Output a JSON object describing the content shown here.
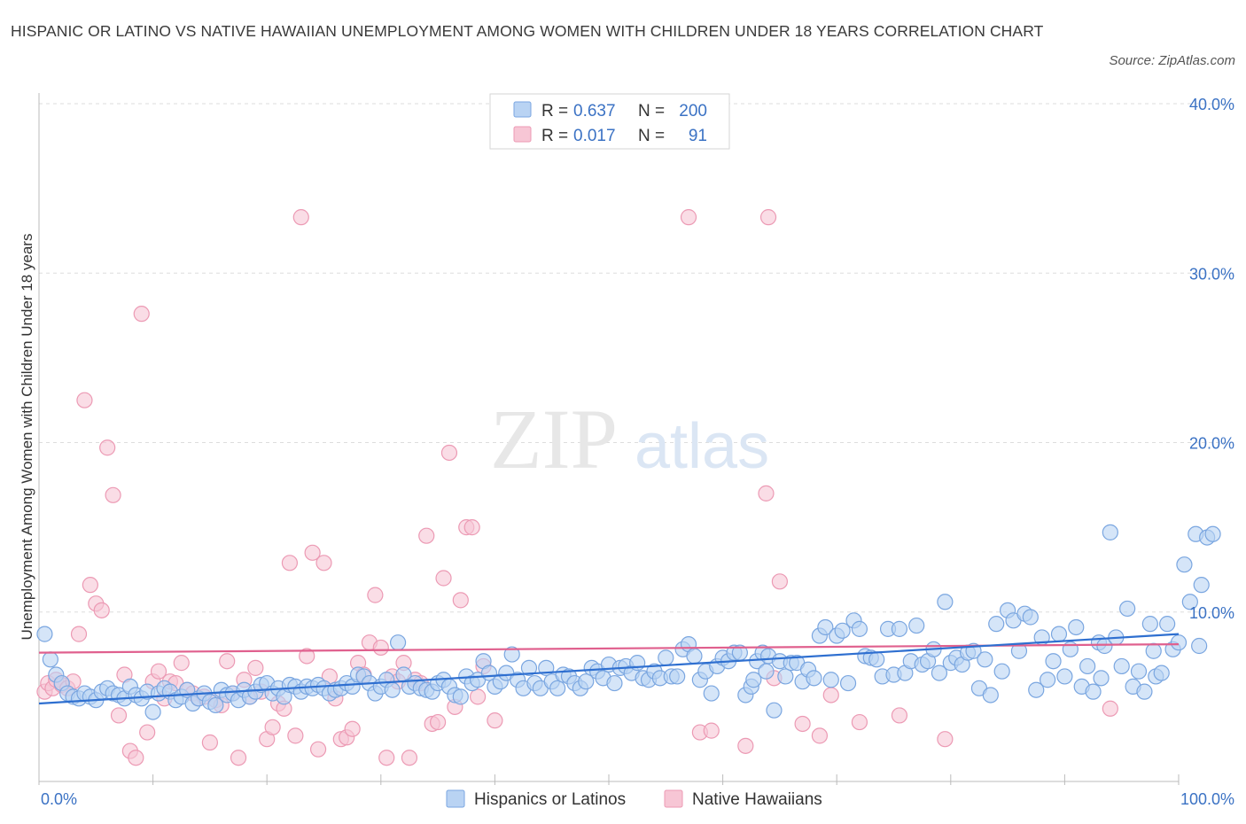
{
  "title": "HISPANIC OR LATINO VS NATIVE HAWAIIAN UNEMPLOYMENT AMONG WOMEN WITH CHILDREN UNDER 18 YEARS CORRELATION CHART",
  "source": "Source: ZipAtlas.com",
  "legend_stats": [
    {
      "r_label": "R =",
      "r_value": "0.637",
      "n_label": "N =",
      "n_value": "200"
    },
    {
      "r_label": "R =",
      "r_value": "0.017",
      "n_label": "N =",
      "n_value": "91"
    }
  ],
  "watermark": {
    "zip": "ZIP",
    "atlas": "atlas"
  },
  "colors": {
    "blue_fill": "#b9d3f3",
    "blue_stroke": "#7aa6e0",
    "blue_line": "#2e6fd0",
    "pink_fill": "#f7c6d5",
    "pink_stroke": "#ec9ab4",
    "pink_line": "#e0608e",
    "tick_text": "#3b72c4",
    "grid": "#dddddd"
  },
  "chart_data": {
    "type": "scatter",
    "title": "HISPANIC OR LATINO VS NATIVE HAWAIIAN UNEMPLOYMENT AMONG WOMEN WITH CHILDREN UNDER 18 YEARS CORRELATION CHART",
    "xlabel": "",
    "ylabel": "Unemployment Among Women with Children Under 18 years",
    "xlim": [
      0,
      100
    ],
    "ylim": [
      0,
      40
    ],
    "x_tick_labels": [
      "0.0%",
      "100.0%"
    ],
    "y_tick_labels": [
      "10.0%",
      "20.0%",
      "30.0%",
      "40.0%"
    ],
    "y_ticks": [
      10,
      20,
      30,
      40
    ],
    "grid": true,
    "legend_position": "top-center",
    "series": [
      {
        "name": "Hispanics or Latinos",
        "r": 0.637,
        "n": 200,
        "trend": [
          [
            0,
            4.6
          ],
          [
            100,
            8.7
          ]
        ],
        "points": [
          [
            0.5,
            8.7
          ],
          [
            1,
            7.2
          ],
          [
            1.5,
            6.3
          ],
          [
            2,
            5.8
          ],
          [
            2.5,
            5.2
          ],
          [
            3,
            5.0
          ],
          [
            3.5,
            4.9
          ],
          [
            4,
            5.2
          ],
          [
            4.5,
            5.0
          ],
          [
            5,
            4.8
          ],
          [
            5.5,
            5.3
          ],
          [
            6,
            5.5
          ],
          [
            6.5,
            5.2
          ],
          [
            7,
            5.1
          ],
          [
            7.5,
            4.9
          ],
          [
            8,
            5.6
          ],
          [
            8.5,
            5.1
          ],
          [
            9,
            4.9
          ],
          [
            9.5,
            5.3
          ],
          [
            10,
            4.1
          ],
          [
            10.5,
            5.2
          ],
          [
            11,
            5.5
          ],
          [
            11.5,
            5.3
          ],
          [
            12,
            4.8
          ],
          [
            12.5,
            5.0
          ],
          [
            13,
            5.4
          ],
          [
            13.5,
            4.6
          ],
          [
            14,
            4.9
          ],
          [
            14.5,
            5.2
          ],
          [
            15,
            4.7
          ],
          [
            15.5,
            4.5
          ],
          [
            16,
            5.4
          ],
          [
            16.5,
            5.1
          ],
          [
            17,
            5.2
          ],
          [
            17.5,
            4.8
          ],
          [
            18,
            5.4
          ],
          [
            18.5,
            5.0
          ],
          [
            19,
            5.3
          ],
          [
            19.5,
            5.7
          ],
          [
            20,
            5.8
          ],
          [
            20.5,
            5.2
          ],
          [
            21,
            5.5
          ],
          [
            21.5,
            5.0
          ],
          [
            22,
            5.7
          ],
          [
            22.5,
            5.6
          ],
          [
            23,
            5.3
          ],
          [
            23.5,
            5.6
          ],
          [
            24,
            5.5
          ],
          [
            24.5,
            5.7
          ],
          [
            25,
            5.5
          ],
          [
            25.5,
            5.2
          ],
          [
            26,
            5.4
          ],
          [
            26.5,
            5.5
          ],
          [
            27,
            5.8
          ],
          [
            27.5,
            5.6
          ],
          [
            28,
            6.3
          ],
          [
            28.5,
            6.2
          ],
          [
            29,
            5.8
          ],
          [
            29.5,
            5.2
          ],
          [
            30,
            5.6
          ],
          [
            30.5,
            6.0
          ],
          [
            31,
            5.4
          ],
          [
            31.5,
            8.2
          ],
          [
            32,
            6.3
          ],
          [
            32.5,
            5.6
          ],
          [
            33,
            5.8
          ],
          [
            33.5,
            5.5
          ],
          [
            34,
            5.4
          ],
          [
            34.5,
            5.3
          ],
          [
            35,
            5.8
          ],
          [
            35.5,
            6.0
          ],
          [
            36,
            5.6
          ],
          [
            36.5,
            5.1
          ],
          [
            37,
            5.0
          ],
          [
            37.5,
            6.2
          ],
          [
            38,
            5.8
          ],
          [
            38.5,
            6.0
          ],
          [
            39,
            7.1
          ],
          [
            39.5,
            6.4
          ],
          [
            40,
            5.6
          ],
          [
            40.5,
            5.9
          ],
          [
            41,
            6.4
          ],
          [
            41.5,
            7.5
          ],
          [
            42,
            6.0
          ],
          [
            42.5,
            5.5
          ],
          [
            43,
            6.7
          ],
          [
            43.5,
            5.8
          ],
          [
            44,
            5.5
          ],
          [
            44.5,
            6.7
          ],
          [
            45,
            5.9
          ],
          [
            45.5,
            5.5
          ],
          [
            46,
            6.3
          ],
          [
            46.5,
            6.2
          ],
          [
            47,
            5.8
          ],
          [
            47.5,
            5.5
          ],
          [
            48,
            5.9
          ],
          [
            48.5,
            6.7
          ],
          [
            49,
            6.5
          ],
          [
            49.5,
            6.1
          ],
          [
            50,
            6.9
          ],
          [
            50.5,
            5.8
          ],
          [
            51,
            6.7
          ],
          [
            51.5,
            6.8
          ],
          [
            52,
            6.4
          ],
          [
            52.5,
            7.0
          ],
          [
            53,
            6.1
          ],
          [
            53.5,
            6.0
          ],
          [
            54,
            6.5
          ],
          [
            54.5,
            6.1
          ],
          [
            55,
            7.3
          ],
          [
            55.5,
            6.2
          ],
          [
            56,
            6.2
          ],
          [
            56.5,
            7.8
          ],
          [
            57,
            8.1
          ],
          [
            57.5,
            7.4
          ],
          [
            58,
            6.0
          ],
          [
            58.5,
            6.5
          ],
          [
            59,
            5.2
          ],
          [
            59.5,
            6.8
          ],
          [
            60,
            7.3
          ],
          [
            60.5,
            7.1
          ],
          [
            61,
            7.6
          ],
          [
            61.5,
            7.6
          ],
          [
            62,
            5.1
          ],
          [
            62.5,
            5.6
          ],
          [
            63,
            7.1
          ],
          [
            63.5,
            7.6
          ],
          [
            64,
            7.4
          ],
          [
            64.5,
            4.2
          ],
          [
            65,
            7.1
          ],
          [
            65.5,
            6.2
          ],
          [
            66,
            7.0
          ],
          [
            66.5,
            7.0
          ],
          [
            67,
            5.9
          ],
          [
            67.5,
            6.6
          ],
          [
            68,
            6.1
          ],
          [
            68.5,
            8.6
          ],
          [
            69,
            9.1
          ],
          [
            69.5,
            6.0
          ],
          [
            70,
            8.6
          ],
          [
            70.5,
            8.9
          ],
          [
            71,
            5.8
          ],
          [
            71.5,
            9.5
          ],
          [
            72,
            9.0
          ],
          [
            72.5,
            7.4
          ],
          [
            73,
            7.3
          ],
          [
            73.5,
            7.2
          ],
          [
            74,
            6.2
          ],
          [
            74.5,
            9.0
          ],
          [
            75,
            6.3
          ],
          [
            75.5,
            9.0
          ],
          [
            76,
            6.4
          ],
          [
            76.5,
            7.1
          ],
          [
            77,
            9.2
          ],
          [
            77.5,
            6.9
          ],
          [
            78,
            7.1
          ],
          [
            78.5,
            7.8
          ],
          [
            79,
            6.4
          ],
          [
            79.5,
            10.6
          ],
          [
            80,
            7.0
          ],
          [
            80.5,
            7.3
          ],
          [
            81,
            6.9
          ],
          [
            81.5,
            7.6
          ],
          [
            82,
            7.7
          ],
          [
            82.5,
            5.5
          ],
          [
            83,
            7.2
          ],
          [
            83.5,
            5.1
          ],
          [
            84,
            9.3
          ],
          [
            84.5,
            6.5
          ],
          [
            85,
            10.1
          ],
          [
            85.5,
            9.5
          ],
          [
            86,
            7.7
          ],
          [
            86.5,
            9.9
          ],
          [
            87,
            9.7
          ],
          [
            87.5,
            5.4
          ],
          [
            88,
            8.5
          ],
          [
            88.5,
            6.0
          ],
          [
            89,
            7.1
          ],
          [
            89.5,
            8.7
          ],
          [
            90,
            6.2
          ],
          [
            90.5,
            7.8
          ],
          [
            91,
            9.1
          ],
          [
            91.5,
            5.6
          ],
          [
            92,
            6.8
          ],
          [
            92.5,
            5.3
          ],
          [
            93,
            8.2
          ],
          [
            93.5,
            8.0
          ],
          [
            94,
            14.7
          ],
          [
            94.5,
            8.5
          ],
          [
            95,
            6.8
          ],
          [
            95.5,
            10.2
          ],
          [
            96,
            5.6
          ],
          [
            96.5,
            6.5
          ],
          [
            97,
            5.3
          ],
          [
            97.5,
            9.3
          ],
          [
            98,
            6.2
          ],
          [
            98.5,
            6.4
          ],
          [
            99,
            9.3
          ],
          [
            99.5,
            7.8
          ],
          [
            100,
            8.2
          ],
          [
            100.5,
            12.8
          ],
          [
            101,
            10.6
          ],
          [
            101.5,
            14.6
          ],
          [
            102,
            11.6
          ],
          [
            102.5,
            14.4
          ],
          [
            103,
            14.6
          ],
          [
            101.8,
            8.0
          ],
          [
            97.8,
            7.7
          ],
          [
            93.2,
            6.1
          ],
          [
            63.8,
            6.5
          ],
          [
            62.7,
            6.0
          ]
        ]
      },
      {
        "name": "Native Hawaiians",
        "r": 0.017,
        "n": 91,
        "trend": [
          [
            0,
            7.6
          ],
          [
            100,
            8.1
          ]
        ],
        "points": [
          [
            0.5,
            5.3
          ],
          [
            0.8,
            5.8
          ],
          [
            1.2,
            5.5
          ],
          [
            1.5,
            6.0
          ],
          [
            2,
            5.7
          ],
          [
            2.5,
            5.5
          ],
          [
            3,
            5.9
          ],
          [
            3.5,
            8.7
          ],
          [
            4,
            22.5
          ],
          [
            4.5,
            11.6
          ],
          [
            5,
            10.5
          ],
          [
            5.5,
            10.1
          ],
          [
            6,
            19.7
          ],
          [
            6.5,
            16.9
          ],
          [
            7,
            3.9
          ],
          [
            7.5,
            6.3
          ],
          [
            8,
            1.8
          ],
          [
            8.5,
            1.4
          ],
          [
            9,
            27.6
          ],
          [
            9.5,
            2.9
          ],
          [
            10,
            5.9
          ],
          [
            10.5,
            6.5
          ],
          [
            11,
            4.9
          ],
          [
            11.5,
            5.9
          ],
          [
            12,
            5.8
          ],
          [
            12.5,
            7.0
          ],
          [
            13,
            5.4
          ],
          [
            13.5,
            5.2
          ],
          [
            14,
            4.9
          ],
          [
            14.5,
            5.0
          ],
          [
            15,
            2.3
          ],
          [
            15.5,
            4.8
          ],
          [
            16,
            4.5
          ],
          [
            16.5,
            7.1
          ],
          [
            17,
            5.2
          ],
          [
            17.5,
            1.4
          ],
          [
            18,
            6.0
          ],
          [
            18.5,
            5.0
          ],
          [
            19,
            6.7
          ],
          [
            19.5,
            5.3
          ],
          [
            20,
            2.5
          ],
          [
            20.5,
            3.2
          ],
          [
            21,
            4.6
          ],
          [
            21.5,
            4.3
          ],
          [
            22,
            12.9
          ],
          [
            22.5,
            2.7
          ],
          [
            23,
            33.3
          ],
          [
            23.5,
            7.4
          ],
          [
            24,
            13.5
          ],
          [
            24.5,
            1.9
          ],
          [
            25,
            12.9
          ],
          [
            25.5,
            6.2
          ],
          [
            26,
            4.9
          ],
          [
            26.5,
            2.5
          ],
          [
            27,
            2.6
          ],
          [
            27.5,
            3.1
          ],
          [
            28,
            7.0
          ],
          [
            28.5,
            6.3
          ],
          [
            29,
            8.2
          ],
          [
            29.5,
            11.0
          ],
          [
            30,
            7.9
          ],
          [
            30.5,
            1.4
          ],
          [
            31,
            6.2
          ],
          [
            31.5,
            5.9
          ],
          [
            32,
            7.0
          ],
          [
            32.5,
            1.4
          ],
          [
            33,
            6.0
          ],
          [
            33.5,
            5.8
          ],
          [
            34,
            14.5
          ],
          [
            34.5,
            3.4
          ],
          [
            35,
            3.5
          ],
          [
            35.5,
            12.0
          ],
          [
            36,
            19.4
          ],
          [
            36.5,
            4.4
          ],
          [
            37,
            10.7
          ],
          [
            37.5,
            15.0
          ],
          [
            38,
            15.0
          ],
          [
            38.5,
            5.0
          ],
          [
            39,
            6.8
          ],
          [
            40,
            3.6
          ],
          [
            57,
            33.3
          ],
          [
            58,
            2.9
          ],
          [
            59,
            3.0
          ],
          [
            63.8,
            17.0
          ],
          [
            64,
            33.3
          ],
          [
            64.5,
            6.1
          ],
          [
            65,
            11.8
          ],
          [
            62,
            2.1
          ],
          [
            67,
            3.4
          ],
          [
            68.5,
            2.7
          ],
          [
            69.5,
            5.1
          ],
          [
            72,
            3.5
          ],
          [
            75.5,
            3.9
          ],
          [
            79.5,
            2.5
          ],
          [
            94,
            4.3
          ]
        ]
      }
    ]
  },
  "bottom_legend": [
    "Hispanics or Latinos",
    "Native Hawaiians"
  ]
}
